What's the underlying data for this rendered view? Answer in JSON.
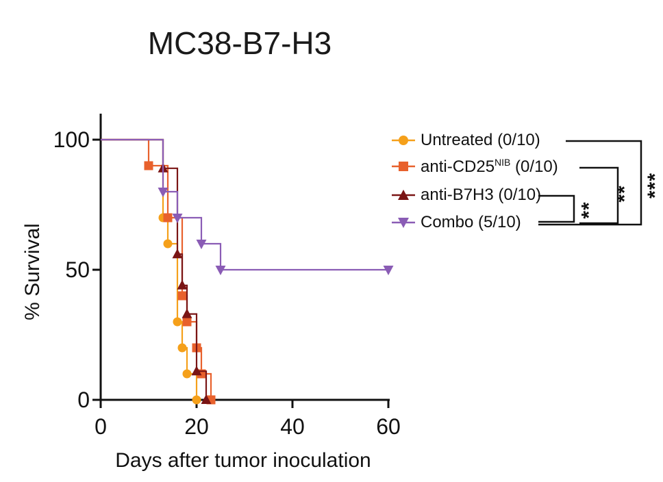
{
  "title": "MC38-B7-H3",
  "chart_data": {
    "type": "line",
    "title": "MC38-B7-H3",
    "xlabel": "Days after tumor inoculation",
    "ylabel": "% Survival",
    "xlim": [
      0,
      60
    ],
    "ylim": [
      0,
      100
    ],
    "xticks": [
      0,
      20,
      40,
      60
    ],
    "yticks": [
      0,
      50,
      100
    ],
    "grid": false,
    "legend_position": "right",
    "series": [
      {
        "name": "Untreated (0/10)",
        "color": "#F5A01A",
        "marker": "circle",
        "steps": [
          [
            0,
            100
          ],
          [
            13,
            100
          ],
          [
            13,
            70
          ],
          [
            14,
            70
          ],
          [
            14,
            60
          ],
          [
            16,
            60
          ],
          [
            16,
            30
          ],
          [
            17,
            30
          ],
          [
            17,
            20
          ],
          [
            18,
            20
          ],
          [
            18,
            10
          ],
          [
            20,
            10
          ],
          [
            20,
            0
          ]
        ],
        "points": [
          [
            13,
            70
          ],
          [
            14,
            60
          ],
          [
            16,
            30
          ],
          [
            17,
            20
          ],
          [
            18,
            10
          ],
          [
            20,
            0
          ]
        ]
      },
      {
        "name": "anti-CD25",
        "name_sup": "NIB",
        "name_suffix": " (0/10)",
        "color": "#E8612C",
        "marker": "square",
        "steps": [
          [
            0,
            100
          ],
          [
            10,
            100
          ],
          [
            10,
            90
          ],
          [
            14,
            90
          ],
          [
            14,
            70
          ],
          [
            17,
            70
          ],
          [
            17,
            40
          ],
          [
            18,
            40
          ],
          [
            18,
            30
          ],
          [
            20,
            30
          ],
          [
            20,
            20
          ],
          [
            21,
            20
          ],
          [
            21,
            10
          ],
          [
            23,
            10
          ],
          [
            23,
            0
          ]
        ],
        "points": [
          [
            10,
            90
          ],
          [
            14,
            70
          ],
          [
            17,
            40
          ],
          [
            18,
            30
          ],
          [
            20,
            20
          ],
          [
            21,
            10
          ],
          [
            23,
            0
          ]
        ]
      },
      {
        "name": "anti-B7H3 (0/10)",
        "color": "#7A1515",
        "marker": "triangle-up",
        "steps": [
          [
            0,
            100
          ],
          [
            13,
            100
          ],
          [
            13,
            89
          ],
          [
            16,
            89
          ],
          [
            16,
            56
          ],
          [
            17,
            56
          ],
          [
            17,
            44
          ],
          [
            18,
            44
          ],
          [
            18,
            33
          ],
          [
            20,
            33
          ],
          [
            20,
            11
          ],
          [
            22,
            11
          ],
          [
            22,
            0
          ]
        ],
        "points": [
          [
            13,
            89
          ],
          [
            16,
            56
          ],
          [
            17,
            44
          ],
          [
            18,
            33
          ],
          [
            20,
            11
          ],
          [
            22,
            0
          ]
        ]
      },
      {
        "name": "Combo (5/10)",
        "color": "#8A5CB5",
        "marker": "triangle-down",
        "steps": [
          [
            0,
            100
          ],
          [
            13,
            100
          ],
          [
            13,
            80
          ],
          [
            16,
            80
          ],
          [
            16,
            70
          ],
          [
            21,
            70
          ],
          [
            21,
            60
          ],
          [
            25,
            60
          ],
          [
            25,
            50
          ],
          [
            60,
            50
          ]
        ],
        "points": [
          [
            13,
            80
          ],
          [
            16,
            70
          ],
          [
            21,
            60
          ],
          [
            25,
            50
          ],
          [
            60,
            50
          ]
        ]
      }
    ],
    "significance": [
      {
        "between": [
          "anti-B7H3 (0/10)",
          "Combo (5/10)"
        ],
        "label": "**"
      },
      {
        "between": [
          "anti-CD25 (0/10)",
          "Combo (5/10)"
        ],
        "label": "**"
      },
      {
        "between": [
          "Untreated (0/10)",
          "Combo (5/10)"
        ],
        "label": "***"
      }
    ]
  }
}
